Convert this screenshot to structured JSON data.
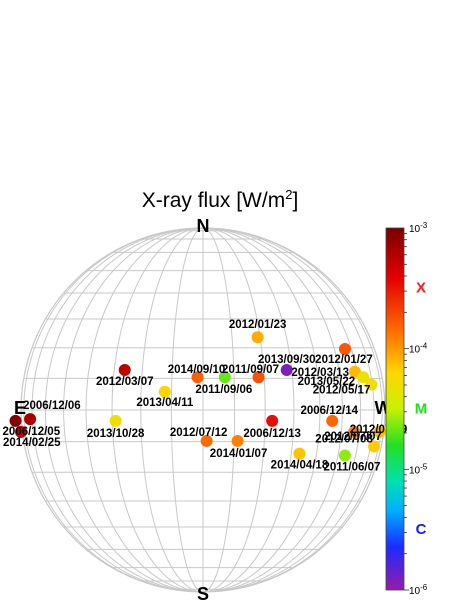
{
  "chart_data": {
    "type": "scatter",
    "title": "X-ray flux [W/m²]",
    "directions": {
      "north": "N",
      "south": "S",
      "east": "E",
      "west": "W"
    },
    "colorbar": {
      "scale": "log",
      "range": [
        1e-06,
        0.001
      ],
      "ticks": [
        {
          "value": 0.001,
          "label": "10-3"
        },
        {
          "value": 0.0001,
          "label": "10-4"
        },
        {
          "value": 1e-05,
          "label": "10-5"
        },
        {
          "value": 1e-06,
          "label": "10-6"
        }
      ],
      "classes": [
        {
          "name": "X",
          "value": 0.00032,
          "color": "#ff1a1a"
        },
        {
          "name": "M",
          "value": 3.2e-05,
          "color": "#22dd22"
        },
        {
          "name": "C",
          "value": 3.2e-06,
          "color": "#1a1aff"
        }
      ]
    },
    "points": [
      {
        "label": "2012/01/23",
        "x": 0.3,
        "y": 0.4,
        "flux": 8.7e-05
      },
      {
        "label": "2012/01/27",
        "x": 0.78,
        "y": 0.335,
        "flux": 0.00017
      },
      {
        "label": "2013/09/30",
        "x": 0.46,
        "y": 0.22,
        "flux": 1.2e-06
      },
      {
        "label": "2012/03/13",
        "x": 0.835,
        "y": 0.21,
        "flux": 7.9e-05
      },
      {
        "label": "2013/05/22",
        "x": 0.88,
        "y": 0.18,
        "flux": 5e-05
      },
      {
        "label": "2012/05/17",
        "x": 0.925,
        "y": 0.14,
        "flux": 5.1e-05
      },
      {
        "label": "2012/03/07",
        "x": -0.43,
        "y": 0.22,
        "flux": 0.00054
      },
      {
        "label": "2014/09/10",
        "x": -0.03,
        "y": 0.18,
        "flux": 0.00016
      },
      {
        "label": "2011/09/06",
        "x": 0.12,
        "y": 0.18,
        "flux": 2.1e-05
      },
      {
        "label": "2011/09/07",
        "x": 0.305,
        "y": 0.18,
        "flux": 0.00018
      },
      {
        "label": "2013/04/11",
        "x": -0.21,
        "y": 0.1,
        "flux": 6.5e-05
      },
      {
        "label": "2006/12/06",
        "x": -0.95,
        "y": -0.05,
        "flux": 0.00065
      },
      {
        "label": "2006/12/05",
        "x": -1.03,
        "y": -0.06,
        "flux": 0.0009
      },
      {
        "label": "2014/02/25",
        "x": -1.0,
        "y": -0.12,
        "flux": 0.00049
      },
      {
        "label": "2013/10/28",
        "x": -0.48,
        "y": -0.06,
        "flux": 5.1e-05
      },
      {
        "label": "2006/12/13",
        "x": 0.38,
        "y": -0.06,
        "flux": 0.00034
      },
      {
        "label": "2006/12/14",
        "x": 0.71,
        "y": -0.06,
        "flux": 0.00015
      },
      {
        "label": "2012/07/19",
        "x": 0.97,
        "y": -0.12,
        "flux": 7.7e-05
      },
      {
        "label": "2012/07/07",
        "x": 0.83,
        "y": -0.12,
        "flux": 0.00011
      },
      {
        "label": "2012/07/12",
        "x": 0.02,
        "y": -0.17,
        "flux": 0.00014
      },
      {
        "label": "2014/01/07",
        "x": 0.19,
        "y": -0.17,
        "flux": 0.00012
      },
      {
        "label": "2012/07/08",
        "x": 0.94,
        "y": -0.2,
        "flux": 6.9e-05
      },
      {
        "label": "2014/04/18",
        "x": 0.53,
        "y": -0.24,
        "flux": 7.3e-05
      },
      {
        "label": "2011/06/07",
        "x": 0.78,
        "y": -0.25,
        "flux": 2.5e-05
      }
    ]
  }
}
